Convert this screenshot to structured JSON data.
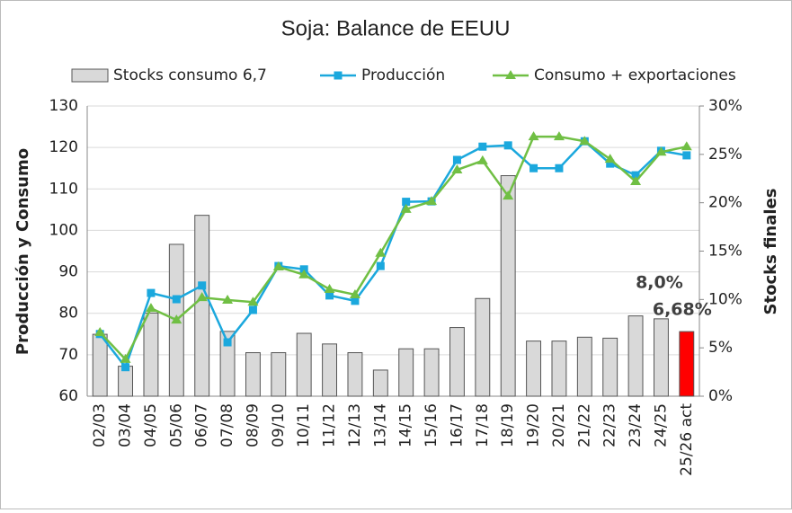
{
  "chart_data": {
    "type": "bar_line",
    "title": "Soja: Balance de EEUU",
    "y_label": "Producción y Consumo",
    "y2_label": "Stocks finales",
    "categories": [
      "02/03",
      "03/04",
      "04/05",
      "05/06",
      "06/07",
      "07/08",
      "08/09",
      "09/10",
      "10/11",
      "11/12",
      "12/13",
      "13/14",
      "14/15",
      "15/16",
      "16/17",
      "17/18",
      "18/19",
      "19/20",
      "20/21",
      "21/22",
      "22/23",
      "23/24",
      "24/25",
      "25/26 act"
    ],
    "series": [
      {
        "name": "Stocks consumo 6,7",
        "type": "bar",
        "axis": "y2",
        "color": "#d9d9d9",
        "colors": [
          "#d9d9d9",
          "#d9d9d9",
          "#d9d9d9",
          "#d9d9d9",
          "#d9d9d9",
          "#d9d9d9",
          "#d9d9d9",
          "#d9d9d9",
          "#d9d9d9",
          "#d9d9d9",
          "#d9d9d9",
          "#d9d9d9",
          "#d9d9d9",
          "#d9d9d9",
          "#d9d9d9",
          "#d9d9d9",
          "#d9d9d9",
          "#d9d9d9",
          "#d9d9d9",
          "#d9d9d9",
          "#d9d9d9",
          "#d9d9d9",
          "#d9d9d9",
          "#ff0000"
        ],
        "values": [
          6.4,
          3.1,
          8.6,
          15.7,
          18.7,
          6.7,
          4.5,
          4.5,
          6.5,
          5.4,
          4.5,
          2.7,
          4.9,
          4.9,
          7.1,
          10.1,
          22.8,
          5.7,
          5.7,
          6.1,
          6.0,
          8.3,
          8.0,
          6.68
        ]
      },
      {
        "name": "Producción",
        "type": "line",
        "marker": "square",
        "color": "#1ba8dd",
        "values": [
          75.0,
          67.0,
          84.9,
          83.4,
          86.7,
          73.0,
          80.8,
          91.4,
          90.6,
          84.3,
          83.0,
          91.4,
          106.9,
          107.0,
          117.0,
          120.2,
          120.5,
          115.0,
          115.0,
          121.5,
          116.1,
          113.3,
          119.2,
          118.1
        ]
      },
      {
        "name": "Consumo + exportaciones",
        "type": "line",
        "marker": "triangle",
        "color": "#70bf44",
        "values": [
          75.4,
          68.9,
          81.2,
          78.4,
          83.8,
          83.2,
          82.7,
          91.2,
          89.3,
          85.8,
          84.5,
          94.5,
          105.1,
          107.0,
          114.6,
          116.8,
          108.3,
          122.6,
          122.6,
          121.5,
          117.2,
          111.8,
          118.9,
          120.2
        ]
      }
    ],
    "annotations": [
      {
        "text": "8,0%",
        "index": 22
      },
      {
        "text": "6,68%",
        "index": 23
      }
    ],
    "ylim": [
      60,
      130
    ],
    "yticks": [
      60,
      70,
      80,
      90,
      100,
      110,
      120,
      130
    ],
    "y2lim": [
      0,
      30
    ],
    "y2ticks": [
      {
        "value": 0,
        "label": "0%"
      },
      {
        "value": 5,
        "label": "5%"
      },
      {
        "value": 10,
        "label": "10%"
      },
      {
        "value": 15,
        "label": "15%"
      },
      {
        "value": 20,
        "label": "20%"
      },
      {
        "value": 25,
        "label": "25%"
      },
      {
        "value": 30,
        "label": "30%"
      }
    ]
  }
}
